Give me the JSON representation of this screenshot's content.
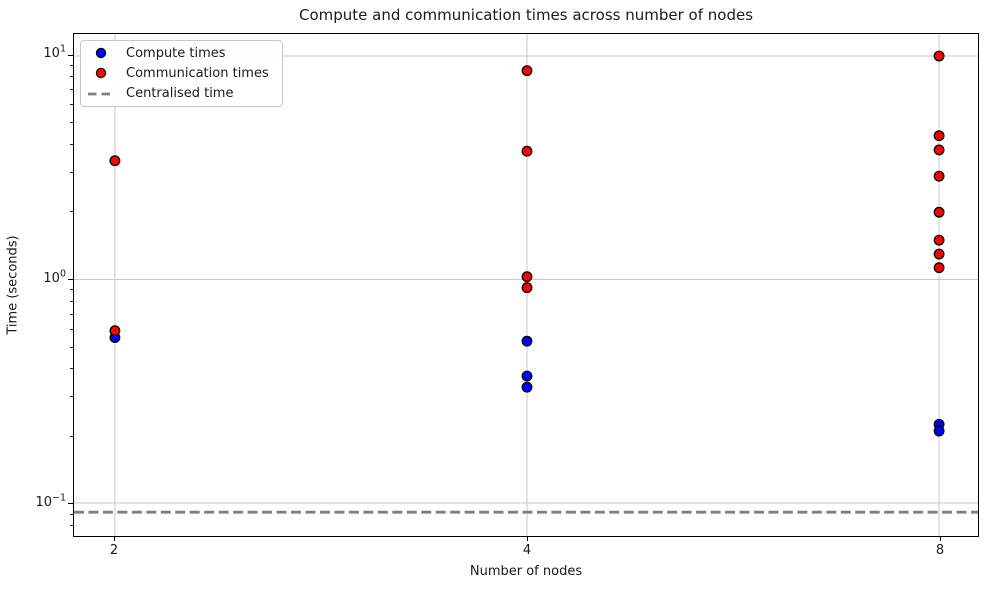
{
  "title": "Compute and communication times across number of nodes",
  "axes": {
    "xlabel": "Number of nodes",
    "ylabel": "Time (seconds)",
    "x_ticks": [
      {
        "label": "2",
        "value": 2
      },
      {
        "label": "4",
        "value": 4
      },
      {
        "label": "8",
        "value": 8
      }
    ],
    "y_ticks": [
      {
        "base": "10",
        "exp": "1",
        "value": 10
      },
      {
        "base": "10",
        "exp": "0",
        "value": 1
      },
      {
        "base": "10",
        "exp": "−1",
        "value": 0.1
      }
    ],
    "y_minor_ticks": [
      0.08,
      0.09,
      0.2,
      0.3,
      0.4,
      0.5,
      0.6,
      0.7,
      0.8,
      0.9,
      2,
      3,
      4,
      5,
      6,
      7,
      8,
      9
    ]
  },
  "legend": {
    "items": [
      {
        "label": "Compute times",
        "marker": "dot",
        "color": "#0000ff"
      },
      {
        "label": "Communication times",
        "marker": "dot",
        "color": "#ff0000"
      },
      {
        "label": "Centralised time",
        "marker": "dashed-line",
        "color": "#808080"
      }
    ]
  },
  "colors": {
    "grid": "#c9c9c9",
    "spine": "#000000",
    "dot_edge": "#000000",
    "compute": "#0000ff",
    "communication": "#ff0000",
    "centralised": "#808080"
  },
  "chart_data": {
    "type": "scatter",
    "title": "Compute and communication times across number of nodes",
    "xlabel": "Number of nodes",
    "ylabel": "Time (seconds)",
    "x_scale": "log2",
    "y_scale": "log10",
    "xlim": [
      1.87,
      8.54
    ],
    "ylim": [
      0.071,
      12.6
    ],
    "x_tick_values": [
      2,
      4,
      8
    ],
    "y_tick_values": [
      10,
      1,
      0.1
    ],
    "grid": true,
    "legend_position": "upper left",
    "series": [
      {
        "name": "Compute times",
        "color": "#0000ff",
        "marker": "circle",
        "points": [
          [
            2,
            0.55
          ],
          [
            4,
            0.53
          ],
          [
            4,
            0.37
          ],
          [
            4,
            0.33
          ],
          [
            8,
            0.225
          ],
          [
            8,
            0.21
          ]
        ]
      },
      {
        "name": "Communication times",
        "color": "#ff0000",
        "marker": "circle",
        "points": [
          [
            2,
            3.4
          ],
          [
            2,
            0.59
          ],
          [
            4,
            8.6
          ],
          [
            4,
            3.75
          ],
          [
            4,
            1.03
          ],
          [
            4,
            0.92
          ],
          [
            8,
            10.0
          ],
          [
            8,
            4.4
          ],
          [
            8,
            3.8
          ],
          [
            8,
            2.9
          ],
          [
            8,
            2.0
          ],
          [
            8,
            1.5
          ],
          [
            8,
            1.3
          ],
          [
            8,
            1.13
          ]
        ]
      },
      {
        "name": "Centralised time",
        "type": "hline",
        "color": "#808080",
        "linestyle": "dashed",
        "value": 0.091
      }
    ]
  }
}
